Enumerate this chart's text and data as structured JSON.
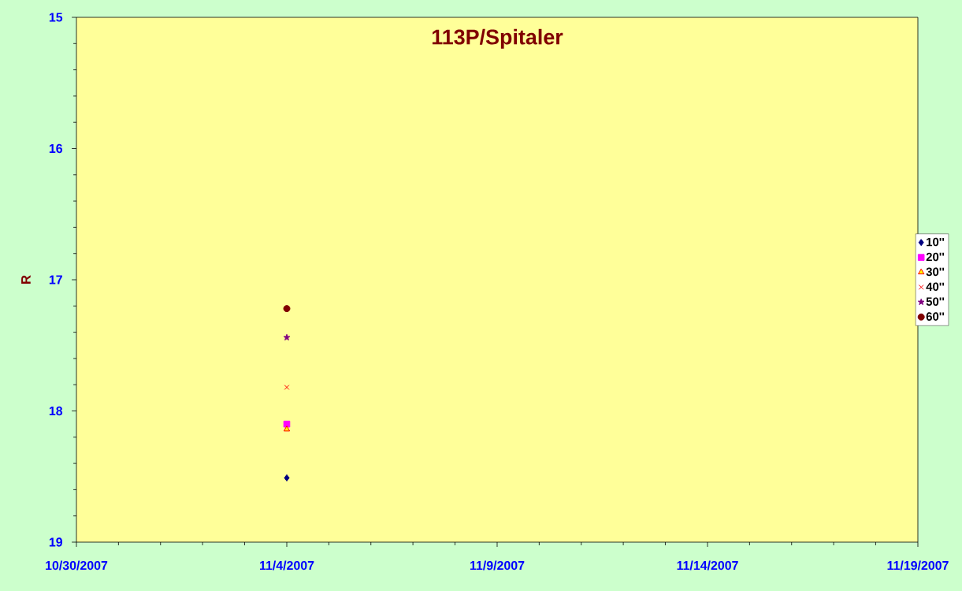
{
  "chart_data": {
    "type": "scatter",
    "title": "113P/Spitaler",
    "ylabel": "R",
    "x": [
      "2007-11-04"
    ],
    "series": [
      {
        "name": "10''",
        "color": "#000080",
        "marker": "diamond",
        "values": [
          18.51
        ]
      },
      {
        "name": "20''",
        "color": "#FF00FF",
        "marker": "square",
        "values": [
          18.1
        ]
      },
      {
        "name": "30''",
        "color": "#FFFF00",
        "marker": "triangle",
        "values": [
          18.14
        ]
      },
      {
        "name": "40''",
        "color": "#FF0000",
        "marker": "cross",
        "values": [
          17.82
        ]
      },
      {
        "name": "50''",
        "color": "#800080",
        "marker": "star",
        "values": [
          17.44
        ]
      },
      {
        "name": "60''",
        "color": "#800000",
        "marker": "circle",
        "values": [
          17.22
        ]
      }
    ],
    "xlim": [
      "2007-10-30",
      "2007-11-19"
    ],
    "xticks": [
      {
        "value": "2007-10-30",
        "label": "10/30/2007"
      },
      {
        "value": "2007-11-04",
        "label": "11/4/2007"
      },
      {
        "value": "2007-11-09",
        "label": "11/9/2007"
      },
      {
        "value": "2007-11-14",
        "label": "11/14/2007"
      },
      {
        "value": "2007-11-19",
        "label": "11/19/2007"
      }
    ],
    "ylim": [
      19,
      15
    ],
    "yticks": [
      15,
      16,
      17,
      18,
      19
    ],
    "grid": false,
    "legend": "right"
  }
}
